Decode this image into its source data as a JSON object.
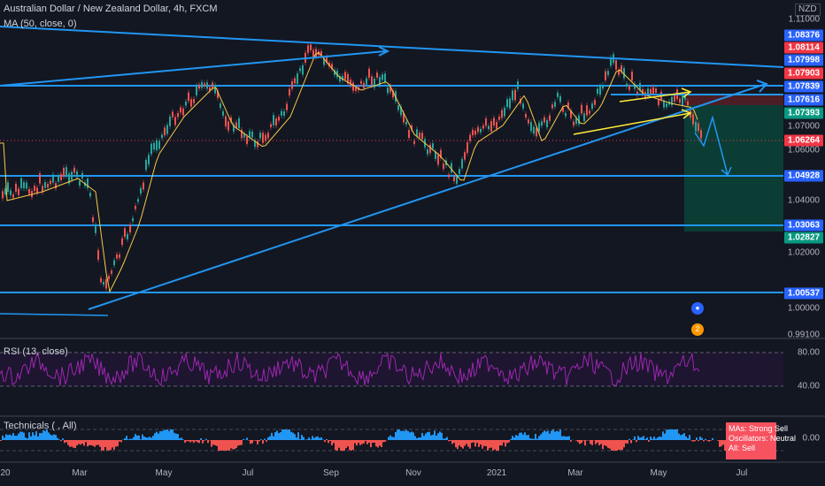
{
  "symbol": {
    "title": "Australian Dollar / New Zealand Dollar, 4h, FXCM",
    "ma_indicator": "MA (50, close, 0)",
    "currency": "NZD"
  },
  "price_axis": {
    "ticks": [
      "1.11000",
      "1.07000",
      "1.06000",
      "1.04000",
      "1.02000",
      "1.00000",
      "0.99100"
    ],
    "boxes": [
      {
        "label": "1.08376",
        "color": "#2962ff"
      },
      {
        "label": "1.08114",
        "color": "#f23645"
      },
      {
        "label": "1.07998",
        "color": "#2962ff"
      },
      {
        "label": "1.07903",
        "color": "#f23645"
      },
      {
        "label": "1.07839",
        "color": "#2962ff"
      },
      {
        "label": "1.07616",
        "color": "#2962ff"
      },
      {
        "label": "1.07393",
        "color": "#089981"
      },
      {
        "label": "1.06264",
        "color": "#f23645"
      },
      {
        "label": "1.04928",
        "color": "#2962ff"
      },
      {
        "label": "1.03063",
        "color": "#2962ff"
      },
      {
        "label": "1.02827",
        "color": "#089981"
      },
      {
        "label": "1.00537",
        "color": "#2962ff"
      }
    ]
  },
  "rsi": {
    "title": "RSI (13, close)",
    "ticks": [
      "80.00",
      "40.00"
    ]
  },
  "technicals": {
    "title": "Technicals ( , All)",
    "tick": "0.00",
    "summary": {
      "mas": "MAs:     Strong Sell",
      "oscillators": "Oscillators: Neutral",
      "all": "All:  Sell"
    }
  },
  "time_axis": {
    "labels": [
      "20",
      "Mar",
      "May",
      "Jul",
      "Sep",
      "Nov",
      "2021",
      "Mar",
      "May",
      "Jul"
    ]
  },
  "events": {
    "badge_count": "2"
  },
  "colors": {
    "background": "#131722",
    "trendline": "#2196f3",
    "ma_line": "#f7c948",
    "rsi_line": "#9c27b0",
    "up_candle": "#26a69a",
    "down_candle": "#ef5350",
    "long_position_fill": "#0b3d35",
    "stop_zone_fill": "#4a1e24"
  }
}
